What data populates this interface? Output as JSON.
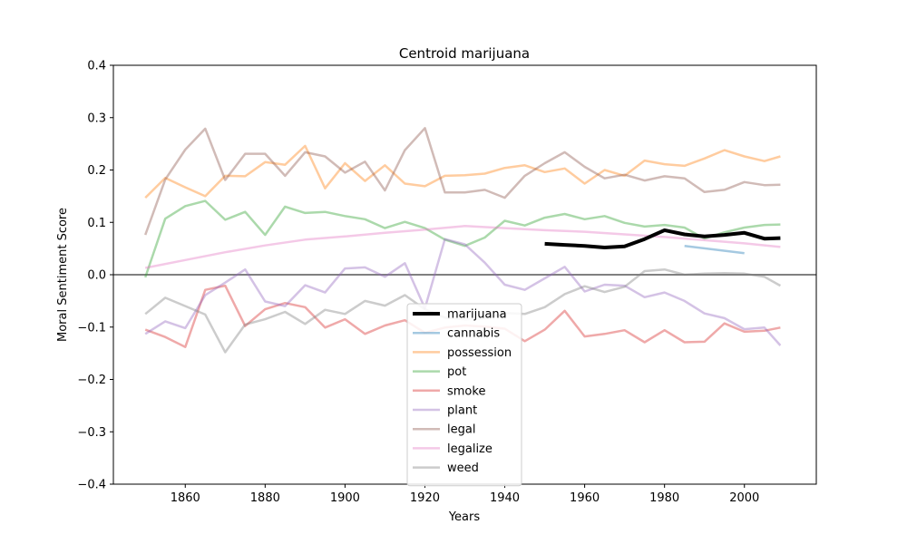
{
  "chart_data": {
    "type": "line",
    "title": "Centroid marijuana",
    "xlabel": "Years",
    "ylabel": "Moral Sentiment Score",
    "xlim": [
      1842,
      2018
    ],
    "ylim": [
      -0.4,
      0.4
    ],
    "x_ticks": [
      1860,
      1880,
      1900,
      1920,
      1940,
      1960,
      1980,
      2000
    ],
    "y_ticks": [
      -0.4,
      -0.3,
      -0.2,
      -0.1,
      0.0,
      0.1,
      0.2,
      0.3,
      0.4
    ],
    "y_tick_labels": [
      "−0.4",
      "−0.3",
      "−0.2",
      "−0.1",
      "0.0",
      "0.1",
      "0.2",
      "0.3",
      "0.4"
    ],
    "x_tick_labels": [
      "1860",
      "1880",
      "1900",
      "1920",
      "1940",
      "1960",
      "1980",
      "2000"
    ],
    "grid": false,
    "zero_line": {
      "y": 0,
      "color": "#808080"
    },
    "legend_position": "lower-center",
    "series": [
      {
        "name": "marijuana",
        "color": "#000000",
        "alpha": 1,
        "width": 4,
        "x": [
          1950,
          1955,
          1960,
          1965,
          1970,
          1975,
          1980,
          1985,
          1990,
          1995,
          2000,
          2005,
          2009
        ],
        "y": [
          0.059,
          0.057,
          0.055,
          0.052,
          0.054,
          0.068,
          0.085,
          0.077,
          0.073,
          0.076,
          0.08,
          0.069,
          0.07
        ]
      },
      {
        "name": "cannabis",
        "color": "#1f77b4",
        "alpha": 0.4,
        "width": 2.5,
        "x": [
          1985,
          2000
        ],
        "y": [
          0.055,
          0.041
        ]
      },
      {
        "name": "possession",
        "color": "#ff7f0e",
        "alpha": 0.4,
        "width": 2.5,
        "x": [
          1850,
          1855,
          1860,
          1865,
          1870,
          1875,
          1880,
          1885,
          1890,
          1895,
          1900,
          1905,
          1910,
          1915,
          1920,
          1925,
          1930,
          1935,
          1940,
          1945,
          1950,
          1955,
          1960,
          1965,
          1970,
          1975,
          1980,
          1985,
          1990,
          1995,
          2000,
          2005,
          2009
        ],
        "y": [
          0.147,
          0.185,
          0.167,
          0.15,
          0.189,
          0.188,
          0.215,
          0.21,
          0.246,
          0.165,
          0.213,
          0.179,
          0.209,
          0.174,
          0.169,
          0.189,
          0.19,
          0.193,
          0.204,
          0.209,
          0.196,
          0.203,
          0.174,
          0.2,
          0.189,
          0.218,
          0.211,
          0.208,
          0.222,
          0.238,
          0.226,
          0.217,
          0.226
        ]
      },
      {
        "name": "pot",
        "color": "#2ca02c",
        "alpha": 0.4,
        "width": 2.5,
        "x": [
          1850,
          1855,
          1860,
          1865,
          1870,
          1875,
          1880,
          1885,
          1890,
          1895,
          1900,
          1905,
          1910,
          1915,
          1920,
          1925,
          1930,
          1935,
          1940,
          1945,
          1950,
          1955,
          1960,
          1965,
          1970,
          1975,
          1980,
          1985,
          1990,
          1995,
          2000,
          2005,
          2009
        ],
        "y": [
          -0.005,
          0.107,
          0.131,
          0.141,
          0.105,
          0.12,
          0.076,
          0.13,
          0.118,
          0.12,
          0.112,
          0.106,
          0.089,
          0.101,
          0.089,
          0.067,
          0.055,
          0.071,
          0.103,
          0.094,
          0.109,
          0.116,
          0.106,
          0.112,
          0.099,
          0.092,
          0.095,
          0.09,
          0.069,
          0.081,
          0.09,
          0.095,
          0.096
        ]
      },
      {
        "name": "smoke",
        "color": "#d62728",
        "alpha": 0.4,
        "width": 2.5,
        "x": [
          1850,
          1855,
          1860,
          1865,
          1870,
          1875,
          1880,
          1885,
          1890,
          1895,
          1900,
          1905,
          1910,
          1915,
          1920,
          1925,
          1930,
          1935,
          1940,
          1945,
          1950,
          1955,
          1960,
          1965,
          1970,
          1975,
          1980,
          1985,
          1990,
          1995,
          2000,
          2005,
          2009
        ],
        "y": [
          -0.105,
          -0.119,
          -0.138,
          -0.029,
          -0.021,
          -0.098,
          -0.066,
          -0.054,
          -0.062,
          -0.101,
          -0.085,
          -0.113,
          -0.097,
          -0.087,
          -0.111,
          -0.101,
          -0.097,
          -0.099,
          -0.103,
          -0.127,
          -0.105,
          -0.069,
          -0.118,
          -0.113,
          -0.106,
          -0.129,
          -0.106,
          -0.129,
          -0.128,
          -0.093,
          -0.109,
          -0.107,
          -0.101
        ]
      },
      {
        "name": "plant",
        "color": "#9467bd",
        "alpha": 0.4,
        "width": 2.5,
        "x": [
          1850,
          1855,
          1860,
          1865,
          1870,
          1875,
          1880,
          1885,
          1890,
          1895,
          1900,
          1905,
          1910,
          1915,
          1920,
          1925,
          1930,
          1935,
          1940,
          1945,
          1950,
          1955,
          1960,
          1965,
          1970,
          1975,
          1980,
          1985,
          1990,
          1995,
          2000,
          2005,
          2009
        ],
        "y": [
          -0.113,
          -0.089,
          -0.102,
          -0.039,
          -0.015,
          0.01,
          -0.051,
          -0.06,
          -0.02,
          -0.034,
          0.012,
          0.014,
          -0.004,
          0.022,
          -0.064,
          0.068,
          0.058,
          0.023,
          -0.019,
          -0.029,
          -0.007,
          0.015,
          -0.032,
          -0.019,
          -0.021,
          -0.043,
          -0.034,
          -0.05,
          -0.074,
          -0.083,
          -0.104,
          -0.101,
          -0.135
        ]
      },
      {
        "name": "legal",
        "color": "#8c564b",
        "alpha": 0.4,
        "width": 2.5,
        "x": [
          1850,
          1855,
          1860,
          1865,
          1870,
          1875,
          1880,
          1885,
          1890,
          1895,
          1900,
          1905,
          1910,
          1915,
          1920,
          1925,
          1930,
          1935,
          1940,
          1945,
          1950,
          1955,
          1960,
          1965,
          1970,
          1975,
          1980,
          1985,
          1990,
          1995,
          2000,
          2005,
          2009
        ],
        "y": [
          0.076,
          0.182,
          0.239,
          0.279,
          0.181,
          0.231,
          0.231,
          0.189,
          0.234,
          0.226,
          0.195,
          0.216,
          0.161,
          0.238,
          0.28,
          0.157,
          0.157,
          0.162,
          0.147,
          0.189,
          0.213,
          0.234,
          0.206,
          0.184,
          0.191,
          0.18,
          0.188,
          0.184,
          0.158,
          0.162,
          0.177,
          0.171,
          0.172
        ]
      },
      {
        "name": "legalize",
        "color": "#e377c2",
        "alpha": 0.4,
        "width": 2.5,
        "x": [
          1850,
          1860,
          1870,
          1880,
          1890,
          1900,
          1910,
          1920,
          1930,
          1940,
          1950,
          1960,
          1970,
          1980,
          1990,
          2000,
          2009
        ],
        "y": [
          0.013,
          0.028,
          0.043,
          0.056,
          0.067,
          0.073,
          0.08,
          0.086,
          0.093,
          0.089,
          0.085,
          0.082,
          0.077,
          0.072,
          0.066,
          0.06,
          0.053
        ]
      },
      {
        "name": "weed",
        "color": "#7f7f7f",
        "alpha": 0.4,
        "width": 2.5,
        "x": [
          1850,
          1855,
          1860,
          1865,
          1870,
          1875,
          1880,
          1885,
          1890,
          1895,
          1900,
          1905,
          1910,
          1915,
          1920,
          1925,
          1930,
          1935,
          1940,
          1945,
          1950,
          1955,
          1960,
          1965,
          1970,
          1975,
          1980,
          1985,
          1990,
          1995,
          2000,
          2005,
          2009
        ],
        "y": [
          -0.075,
          -0.044,
          -0.06,
          -0.076,
          -0.148,
          -0.095,
          -0.085,
          -0.071,
          -0.094,
          -0.067,
          -0.075,
          -0.05,
          -0.059,
          -0.039,
          -0.066,
          -0.082,
          -0.085,
          -0.084,
          -0.073,
          -0.075,
          -0.062,
          -0.037,
          -0.022,
          -0.033,
          -0.023,
          0.007,
          0.01,
          0.0,
          0.002,
          0.003,
          0.002,
          -0.004,
          -0.021
        ]
      }
    ]
  }
}
